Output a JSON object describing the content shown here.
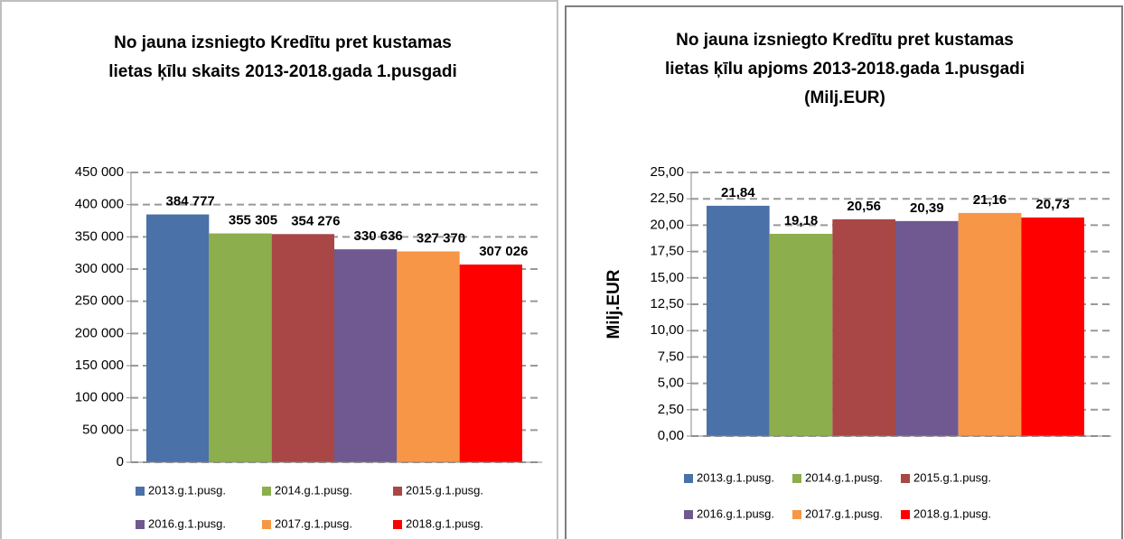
{
  "chart_data": [
    {
      "type": "bar",
      "title": [
        "No jauna izsniegto Kredītu pret kustamas",
        "lietas ķīlu skaits 2013-2018.gada 1.pusgadi"
      ],
      "series": [
        {
          "name": "2013.g.1.pusg.",
          "color": "#4a71a8",
          "values": [
            384777
          ],
          "value_labels": [
            "384 777"
          ]
        },
        {
          "name": "2014.g.1.pusg.",
          "color": "#8cae4c",
          "values": [
            355305
          ],
          "value_labels": [
            "355 305"
          ]
        },
        {
          "name": "2015.g.1.pusg.",
          "color": "#a84745",
          "values": [
            354276
          ],
          "value_labels": [
            "354 276"
          ]
        },
        {
          "name": "2016.g.1.pusg.",
          "color": "#6f5990",
          "values": [
            330636
          ],
          "value_labels": [
            "330 636"
          ]
        },
        {
          "name": "2017.g.1.pusg.",
          "color": "#f79646",
          "values": [
            327370
          ],
          "value_labels": [
            "327 370"
          ]
        },
        {
          "name": "2018.g.1.pusg.",
          "color": "#ff0000",
          "values": [
            307026
          ],
          "value_labels": [
            "307 026"
          ]
        }
      ],
      "ylim": [
        0,
        450000
      ],
      "yticks": [
        0,
        {
          "value": 50000,
          "label": "50 000"
        },
        {
          "value": 100000,
          "label": "100 000"
        },
        {
          "value": 150000,
          "label": "150 000"
        },
        {
          "value": 200000,
          "label": "200 000"
        },
        {
          "value": 250000,
          "label": "250 000"
        },
        {
          "value": 300000,
          "label": "300 000"
        },
        {
          "value": 350000,
          "label": "350 000"
        },
        {
          "value": 400000,
          "label": "400 000"
        },
        {
          "value": 450000,
          "label": "450 000"
        }
      ],
      "grid": true,
      "legend": "bottom"
    },
    {
      "type": "bar",
      "title": [
        "No jauna izsniegto Kredītu pret kustamas",
        "lietas ķīlu apjoms 2013-2018.gada 1.pusgadi",
        "(Milj.EUR)"
      ],
      "y_label": "Milj.EUR",
      "series": [
        {
          "name": "2013.g.1.pusg.",
          "color": "#4a71a8",
          "values": [
            21.84
          ],
          "value_labels": [
            "21,84"
          ]
        },
        {
          "name": "2014.g.1.pusg.",
          "color": "#8cae4c",
          "values": [
            19.18
          ],
          "value_labels": [
            "19,18"
          ]
        },
        {
          "name": "2015.g.1.pusg.",
          "color": "#a84745",
          "values": [
            20.56
          ],
          "value_labels": [
            "20,56"
          ]
        },
        {
          "name": "2016.g.1.pusg.",
          "color": "#6f5990",
          "values": [
            20.39
          ],
          "value_labels": [
            "20,39"
          ]
        },
        {
          "name": "2017.g.1.pusg.",
          "color": "#f79646",
          "values": [
            21.16
          ],
          "value_labels": [
            "21,16"
          ]
        },
        {
          "name": "2018.g.1.pusg.",
          "color": "#ff0000",
          "values": [
            20.73
          ],
          "value_labels": [
            "20,73"
          ]
        }
      ],
      "ylim": [
        0,
        25
      ],
      "yticks": [
        {
          "value": 0,
          "label": "0,00"
        },
        {
          "value": 2.5,
          "label": "2,50"
        },
        {
          "value": 5,
          "label": "5,00"
        },
        {
          "value": 7.5,
          "label": "7,50"
        },
        {
          "value": 10,
          "label": "10,00"
        },
        {
          "value": 12.5,
          "label": "12,50"
        },
        {
          "value": 15,
          "label": "15,00"
        },
        {
          "value": 17.5,
          "label": "17,50"
        },
        {
          "value": 20,
          "label": "20,00"
        },
        {
          "value": 22.5,
          "label": "22,50"
        },
        {
          "value": 25,
          "label": "25,00"
        }
      ],
      "grid": true,
      "legend": "bottom"
    }
  ]
}
